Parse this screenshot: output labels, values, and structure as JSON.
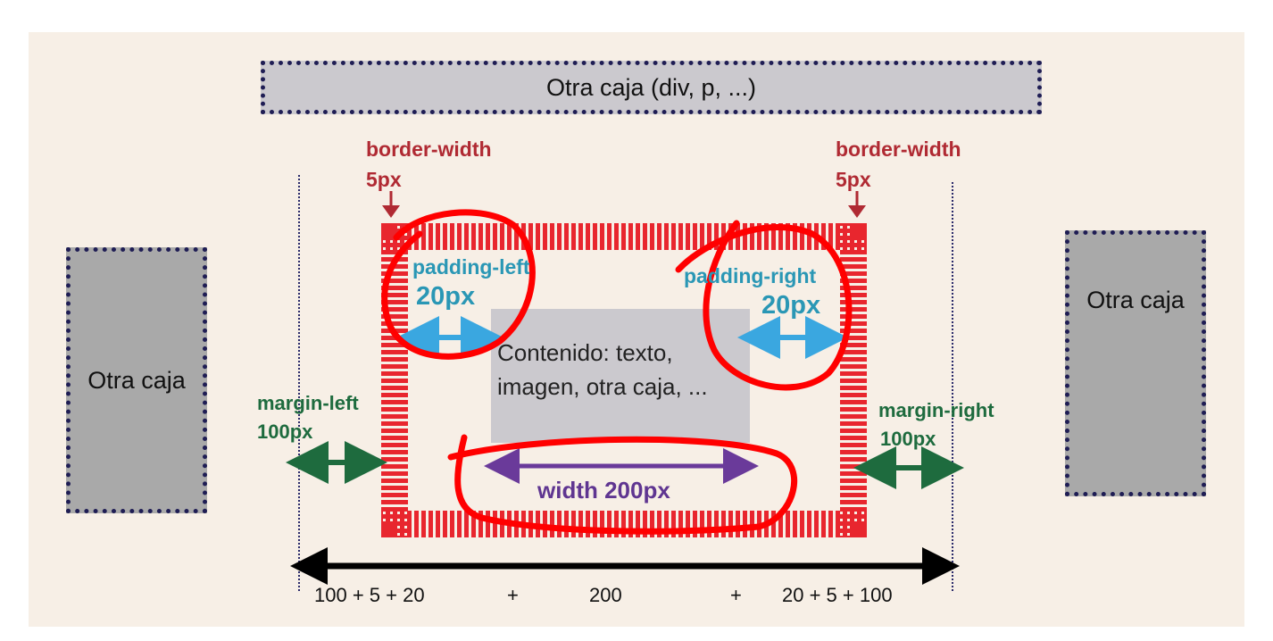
{
  "top_box": {
    "label": "Otra caja (div, p, ...)"
  },
  "left_box": {
    "label": "Otra caja"
  },
  "right_box": {
    "label": "Otra caja"
  },
  "border_left": {
    "title": "border-width",
    "value": "5px"
  },
  "border_right": {
    "title": "border-width",
    "value": "5px"
  },
  "padding_left": {
    "title": "padding-left",
    "value": "20px"
  },
  "padding_right": {
    "title": "padding-right",
    "value": "20px"
  },
  "margin_left": {
    "title": "margin-left",
    "value": "100px"
  },
  "margin_right": {
    "title": "margin-right",
    "value": "100px"
  },
  "content": {
    "line1": "Contenido: texto,",
    "line2": "imagen, otra caja, ..."
  },
  "width_label": "width 200px",
  "formula": {
    "t1": "100 + 5 + 20",
    "t2": "+",
    "t3": "200",
    "t4": "+",
    "t5": "20 + 5 + 100"
  },
  "colors": {
    "border_stripe": "#e8262e",
    "padding_arrow": "#3aa7e0",
    "margin_arrow": "#1e6b3e",
    "width_arrow": "#6a3a9a",
    "annotation": "#ff0000"
  }
}
